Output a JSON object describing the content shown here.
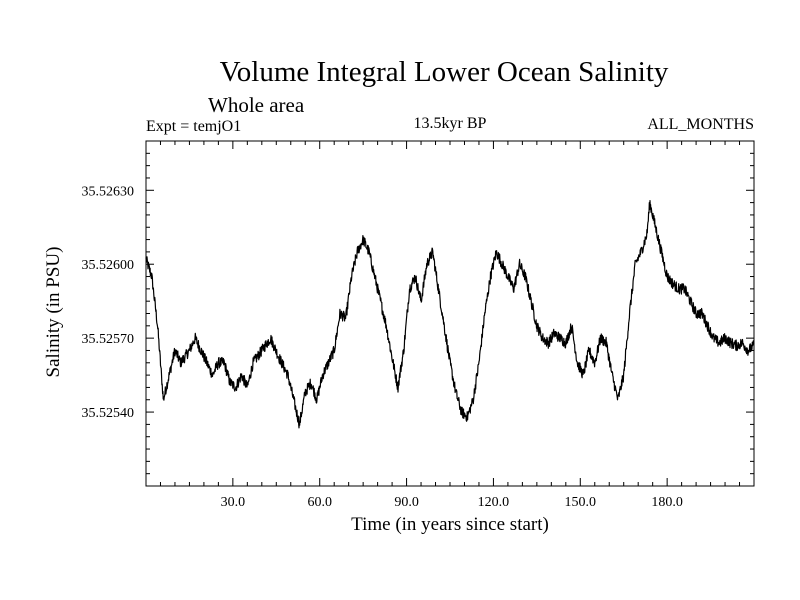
{
  "chart_data": {
    "type": "line",
    "title": "Volume Integral Lower Ocean Salinity",
    "subtitle": "Whole area",
    "experiment": "Expt = temjO1",
    "period": "13.5kyr BP",
    "months": "ALL_MONTHS",
    "xlabel": "Time (in years since start)",
    "ylabel": "Salinity (in PSU)",
    "xlim": [
      0,
      210
    ],
    "ylim": [
      35.5251,
      35.5265
    ],
    "xticks": [
      30,
      60,
      90,
      120,
      150,
      180
    ],
    "xtick_labels": [
      "30.0",
      "60.0",
      "90.0",
      "120.0",
      "150.0",
      "180.0"
    ],
    "yticks": [
      35.5254,
      35.5257,
      35.526,
      35.5263
    ],
    "ytick_labels": [
      "35.52540",
      "35.52570",
      "35.52600",
      "35.52630"
    ],
    "series": [
      {
        "name": "Salinity",
        "color": "#000000",
        "noise": 2.2e-05,
        "anchors": [
          [
            0,
            35.52602
          ],
          [
            2,
            35.52595
          ],
          [
            4,
            35.52575
          ],
          [
            6,
            35.52545
          ],
          [
            8,
            35.52555
          ],
          [
            10,
            35.52565
          ],
          [
            12,
            35.5256
          ],
          [
            15,
            35.52565
          ],
          [
            17,
            35.5257
          ],
          [
            19,
            35.52565
          ],
          [
            21,
            35.5256
          ],
          [
            23,
            35.52555
          ],
          [
            25,
            35.5256
          ],
          [
            27,
            35.5256
          ],
          [
            29,
            35.52552
          ],
          [
            31,
            35.5255
          ],
          [
            33,
            35.52555
          ],
          [
            35,
            35.5255
          ],
          [
            37,
            35.5256
          ],
          [
            40,
            35.52565
          ],
          [
            43,
            35.5257
          ],
          [
            46,
            35.52562
          ],
          [
            49,
            35.52555
          ],
          [
            51,
            35.52545
          ],
          [
            53,
            35.52535
          ],
          [
            55,
            35.52548
          ],
          [
            57,
            35.52552
          ],
          [
            59,
            35.52545
          ],
          [
            61,
            35.52555
          ],
          [
            63,
            35.5256
          ],
          [
            65,
            35.52565
          ],
          [
            67,
            35.5258
          ],
          [
            69,
            35.52578
          ],
          [
            71,
            35.52595
          ],
          [
            73,
            35.52605
          ],
          [
            75,
            35.5261
          ],
          [
            77,
            35.52605
          ],
          [
            79,
            35.52595
          ],
          [
            81,
            35.52585
          ],
          [
            83,
            35.52575
          ],
          [
            85,
            35.52562
          ],
          [
            87,
            35.5255
          ],
          [
            89,
            35.52565
          ],
          [
            91,
            35.5259
          ],
          [
            93,
            35.52595
          ],
          [
            95,
            35.52585
          ],
          [
            97,
            35.526
          ],
          [
            99,
            35.52605
          ],
          [
            101,
            35.5259
          ],
          [
            103,
            35.52575
          ],
          [
            105,
            35.5256
          ],
          [
            107,
            35.52548
          ],
          [
            109,
            35.5254
          ],
          [
            111,
            35.52538
          ],
          [
            113,
            35.52545
          ],
          [
            115,
            35.5256
          ],
          [
            117,
            35.5258
          ],
          [
            119,
            35.52595
          ],
          [
            121,
            35.52605
          ],
          [
            123,
            35.526
          ],
          [
            125,
            35.52595
          ],
          [
            127,
            35.5259
          ],
          [
            129,
            35.526
          ],
          [
            131,
            35.52595
          ],
          [
            133,
            35.52585
          ],
          [
            135,
            35.52575
          ],
          [
            137,
            35.5257
          ],
          [
            139,
            35.52568
          ],
          [
            141,
            35.52572
          ],
          [
            143,
            35.5257
          ],
          [
            145,
            35.52568
          ],
          [
            147,
            35.52575
          ],
          [
            149,
            35.5256
          ],
          [
            151,
            35.52555
          ],
          [
            153,
            35.52565
          ],
          [
            155,
            35.5256
          ],
          [
            157,
            35.5257
          ],
          [
            159,
            35.52568
          ],
          [
            161,
            35.52555
          ],
          [
            163,
            35.52545
          ],
          [
            165,
            35.52555
          ],
          [
            167,
            35.5258
          ],
          [
            169,
            35.526
          ],
          [
            171,
            35.52605
          ],
          [
            173,
            35.52612
          ],
          [
            174,
            35.52625
          ],
          [
            176,
            35.52615
          ],
          [
            178,
            35.52605
          ],
          [
            180,
            35.52595
          ],
          [
            182,
            35.52592
          ],
          [
            184,
            35.5259
          ],
          [
            186,
            35.5259
          ],
          [
            188,
            35.52585
          ],
          [
            190,
            35.5258
          ],
          [
            192,
            35.5258
          ],
          [
            194,
            35.52575
          ],
          [
            196,
            35.5257
          ],
          [
            198,
            35.52568
          ],
          [
            200,
            35.5257
          ],
          [
            202,
            35.52568
          ],
          [
            204,
            35.52567
          ],
          [
            206,
            35.52568
          ],
          [
            208,
            35.52565
          ],
          [
            210,
            35.52567
          ]
        ]
      }
    ]
  }
}
